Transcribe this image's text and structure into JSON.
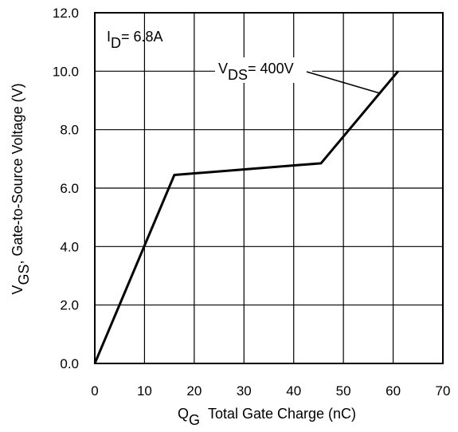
{
  "chart_data": {
    "type": "line",
    "title": "",
    "xlabel": {
      "symbol": "Q",
      "subscript": "G",
      "text": "Total Gate Charge (nC)"
    },
    "ylabel": {
      "symbol": "V",
      "subscript": "GS",
      "text": ", Gate-to-Source Voltage (V)"
    },
    "xlim": [
      0,
      70
    ],
    "ylim": [
      0,
      12
    ],
    "xticks": [
      "0",
      "10",
      "20",
      "30",
      "40",
      "50",
      "60",
      "70"
    ],
    "yticks": [
      "0.0",
      "2.0",
      "4.0",
      "6.0",
      "8.0",
      "10.0",
      "12.0"
    ],
    "grid": true,
    "series": [
      {
        "name": "",
        "x": [
          0,
          16,
          45.5,
          61
        ],
        "y": [
          0,
          6.45,
          6.85,
          10
        ]
      }
    ],
    "annotations": {
      "id_label": {
        "symbol": "I",
        "subscript": "D",
        "text": "= 6.8A"
      },
      "vds_label": {
        "symbol": "V",
        "subscript": "DS",
        "text": "= 400V"
      }
    },
    "colors": {
      "line": "#000000",
      "grid": "#000000",
      "background": "#ffffff"
    }
  }
}
